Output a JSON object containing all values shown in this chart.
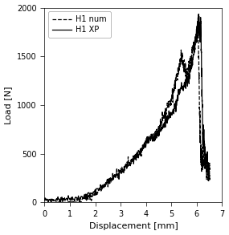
{
  "title": "",
  "xlabel": "Displacement [mm]",
  "ylabel": "Load [N]",
  "xlim": [
    0,
    7
  ],
  "ylim": [
    0,
    2000
  ],
  "xticks": [
    0,
    1,
    2,
    3,
    4,
    5,
    6,
    7
  ],
  "yticks": [
    0,
    500,
    1000,
    1500,
    2000
  ],
  "legend_labels": [
    "H1 num",
    "H1 XP"
  ],
  "bg_color": "#ffffff",
  "line_color": "#000000",
  "figsize": [
    2.85,
    2.93
  ],
  "dpi": 100,
  "font_size_label": 8,
  "font_size_tick": 7,
  "font_size_legend": 7
}
